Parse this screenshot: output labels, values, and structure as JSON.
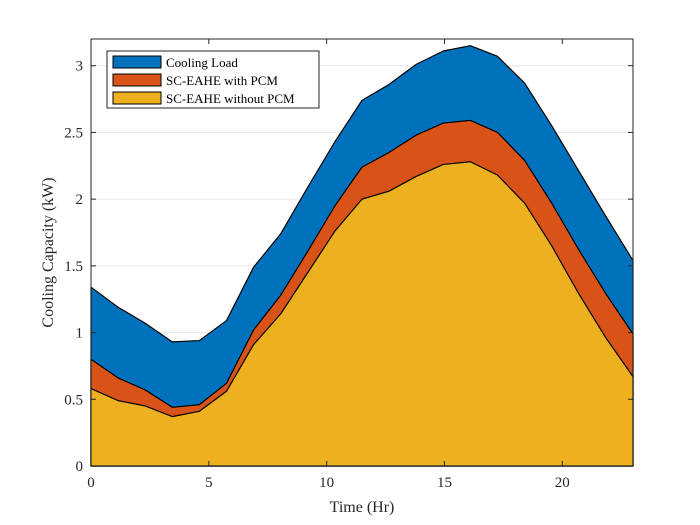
{
  "chart_data": {
    "type": "area",
    "stacked": false,
    "xlabel": "Time (Hr)",
    "ylabel": "Cooling Capacity (kW)",
    "xlim": [
      0,
      23
    ],
    "ylim": [
      0,
      3.2
    ],
    "xticks": [
      0,
      5,
      10,
      15,
      20
    ],
    "xtick_labels": [
      "0",
      "5",
      "10",
      "15",
      "20"
    ],
    "yticks": [
      0,
      0.5,
      1,
      1.5,
      2,
      2.5,
      3
    ],
    "ytick_labels": [
      "0",
      "0.5",
      "1",
      "1.5",
      "2",
      "2.5",
      "3"
    ],
    "grid": "horizontal",
    "legend_position": "top-left",
    "x": [
      0,
      1.15,
      2.3,
      3.45,
      4.6,
      5.75,
      6.9,
      8.05,
      9.2,
      10.35,
      11.5,
      12.65,
      13.8,
      14.95,
      16.1,
      17.25,
      18.4,
      19.55,
      20.7,
      21.85,
      23.0
    ],
    "series": [
      {
        "name": "Cooling Load",
        "color": "#0072BD",
        "values": [
          1.34,
          1.19,
          1.07,
          0.93,
          0.94,
          1.09,
          1.49,
          1.74,
          2.09,
          2.43,
          2.74,
          2.86,
          3.01,
          3.11,
          3.15,
          3.07,
          2.87,
          2.55,
          2.21,
          1.87,
          1.54
        ]
      },
      {
        "name": "SC-EAHE with PCM",
        "color": "#D95319",
        "values": [
          0.8,
          0.66,
          0.57,
          0.44,
          0.46,
          0.62,
          1.02,
          1.28,
          1.61,
          1.95,
          2.24,
          2.35,
          2.48,
          2.57,
          2.59,
          2.5,
          2.29,
          1.97,
          1.62,
          1.29,
          0.99
        ]
      },
      {
        "name": "SC-EAHE without PCM",
        "color": "#EDB120",
        "values": [
          0.58,
          0.49,
          0.45,
          0.37,
          0.41,
          0.56,
          0.91,
          1.14,
          1.45,
          1.76,
          2.0,
          2.06,
          2.17,
          2.26,
          2.28,
          2.18,
          1.97,
          1.65,
          1.29,
          0.96,
          0.67
        ]
      }
    ]
  }
}
